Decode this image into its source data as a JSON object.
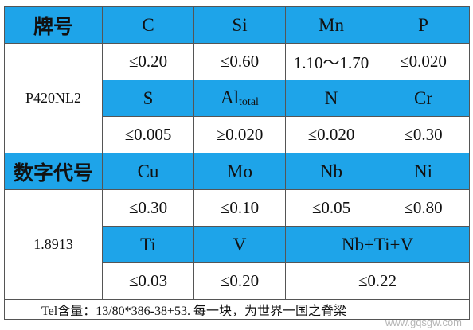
{
  "table": {
    "rows": [
      [
        "牌号",
        "C",
        "Si",
        "Mn",
        "P"
      ],
      [
        "P420NL2",
        "≤0.20",
        "≤0.60",
        "1.10～1.70",
        "≤0.020"
      ],
      [
        "S",
        {
          "text": "Al",
          "sub": "total"
        },
        "N",
        "Cr"
      ],
      [
        "≤0.005",
        "≥0.020",
        "≤0.020",
        "≤0.30"
      ],
      [
        "数字代号",
        "Cu",
        "Mo",
        "Nb",
        "Ni"
      ],
      [
        "1.8913",
        "≤0.30",
        "≤0.10",
        "≤0.05",
        "≤0.80"
      ],
      [
        "Ti",
        "V",
        "Nb+Ti+V"
      ],
      [
        "≤0.03",
        "≤0.20",
        "≤0.22"
      ]
    ]
  },
  "footer": "Tel含量：13/80*386-38+53. 每一块，为世界一国之脊梁",
  "watermark": "www.gqsgw.com"
}
